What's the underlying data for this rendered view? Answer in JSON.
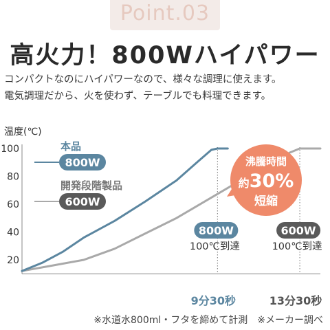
{
  "header": {
    "point_label": "Point.03",
    "headline": "高火力！800Wハイパワー",
    "description_lines": [
      "コンパクトなのにハイパワーなので、様々な調理に使えます。",
      "電気調理だから、火を使わず、テーブルでも料理できます。"
    ]
  },
  "footnote": "※水道水800ml・フタを締めて計測　※メーカー調べ",
  "colors": {
    "blue": "#5b86a0",
    "gray": "#a9a9a9",
    "dark_badge": "#5a5a5a",
    "orange": "#ef8a6a",
    "time_label_blue": "#5b86a0",
    "time_label_gray": "#555555"
  },
  "chart_data": {
    "type": "line",
    "ylabel": "温度(℃)",
    "ylim": [
      10,
      105
    ],
    "yticks": [
      "20",
      "40",
      "60",
      "80",
      "100"
    ],
    "xlim": [
      0,
      14.5
    ],
    "series": [
      {
        "name": "本品",
        "badge": "800W",
        "color": "#5b86a0",
        "x": [
          0,
          1.0,
          2.0,
          3.0,
          4.5,
          6.0,
          7.5,
          8.5,
          9.2,
          9.5,
          10.0
        ],
        "y": [
          12,
          18,
          26,
          36,
          48,
          62,
          77,
          90,
          99,
          100,
          100
        ]
      },
      {
        "name": "開発段階製品",
        "badge": "600W",
        "color": "#a9a9a9",
        "x": [
          0,
          1.5,
          3.0,
          4.5,
          6.0,
          7.5,
          9.0,
          10.5,
          12.0,
          13.0,
          13.5,
          14.5
        ],
        "y": [
          12,
          16,
          20,
          28,
          39,
          50,
          63,
          76,
          88,
          97,
          100,
          100
        ]
      }
    ],
    "markers": [
      {
        "x": 9.5,
        "time_label": "9分30秒",
        "badge": "800W",
        "caption": "100℃到達"
      },
      {
        "x": 13.5,
        "time_label": "13分30秒",
        "badge": "600W",
        "caption": "100℃到達"
      }
    ],
    "callout": {
      "line1": "沸騰時間",
      "line2_prefix": "約",
      "line2_value": "30%",
      "line3": "短縮"
    }
  }
}
